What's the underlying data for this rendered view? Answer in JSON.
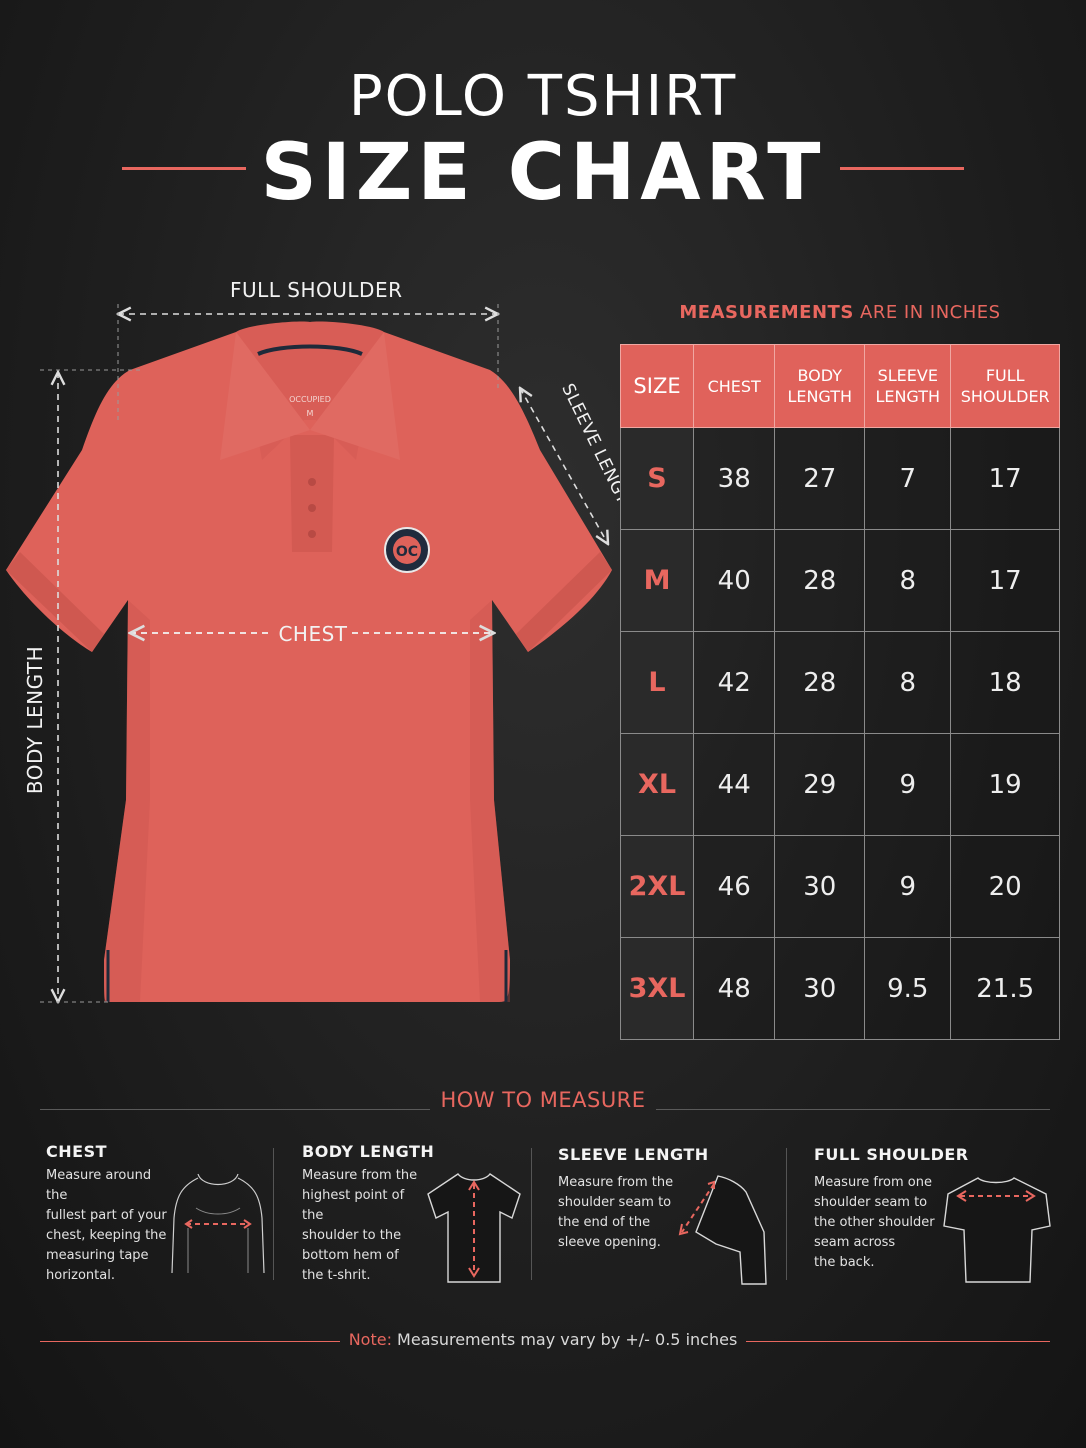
{
  "title": {
    "line1": "POLO TSHIRT",
    "line2": "SIZE CHART"
  },
  "dimensions": {
    "full_shoulder": "FULL SHOULDER",
    "sleeve_length": "SLEEVE LENGTH",
    "chest": "CHEST",
    "body_length": "BODY LENGTH"
  },
  "shirt": {
    "collar_brand": "OCCUPIED",
    "collar_size": "M",
    "badge": "OC",
    "color": "#e0625b"
  },
  "measurements": {
    "caption_bold": "MEASUREMENTS",
    "caption_rest": " ARE IN INCHES"
  },
  "table": {
    "headers": [
      "SIZE",
      "CHEST",
      "BODY\nLENGTH",
      "SLEEVE\nLENGTH",
      "FULL\nSHOULDER"
    ],
    "rows": [
      [
        "S",
        "38",
        "27",
        "7",
        "17"
      ],
      [
        "M",
        "40",
        "28",
        "8",
        "17"
      ],
      [
        "L",
        "42",
        "28",
        "8",
        "18"
      ],
      [
        "XL",
        "44",
        "29",
        "9",
        "19"
      ],
      [
        "2XL",
        "46",
        "30",
        "9",
        "20"
      ],
      [
        "3XL",
        "48",
        "30",
        "9.5",
        "21.5"
      ]
    ]
  },
  "how_to": {
    "title": "HOW TO MEASURE",
    "steps": [
      {
        "title": "CHEST",
        "text": [
          "Measure around the",
          "fullest part of your",
          "chest, keeping the",
          "measuring tape",
          "horizontal."
        ]
      },
      {
        "title": "BODY LENGTH",
        "text": [
          "Measure from the",
          "highest point of the",
          "shoulder to the",
          "bottom hem of",
          "the t-shrit."
        ]
      },
      {
        "title": "SLEEVE LENGTH",
        "text": [
          "Measure from the",
          "shoulder seam to",
          "the end of the",
          "sleeve opening."
        ]
      },
      {
        "title": "FULL SHOULDER",
        "text": [
          "Measure from one",
          "shoulder seam to",
          "the other shoulder",
          "seam across",
          "the back."
        ]
      }
    ]
  },
  "note": {
    "label": "Note:",
    "text": " Measurements may vary by +/- 0.5 inches"
  },
  "colors": {
    "accent": "#e8675f",
    "background": "#1f1f1f"
  }
}
